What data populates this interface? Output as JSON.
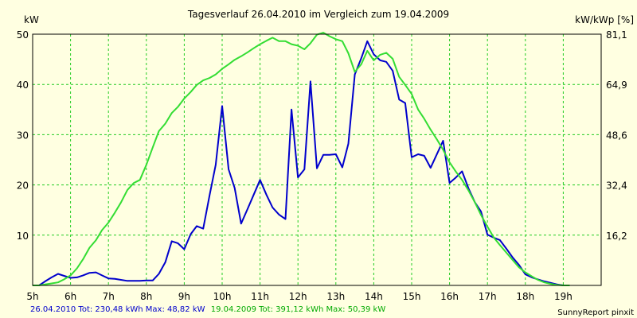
{
  "chart_data": {
    "type": "line",
    "title": "Tagesverlauf 26.04.2010 im Vergleich zum 19.04.2009",
    "ylabel_left": "kW",
    "ylabel_right": "kW/kWp [%]",
    "xlim": [
      5,
      20
    ],
    "ylim": [
      0,
      50
    ],
    "x_ticks": [
      {
        "value": 5,
        "label": "5h"
      },
      {
        "value": 6,
        "label": "6h"
      },
      {
        "value": 7,
        "label": "7h"
      },
      {
        "value": 8,
        "label": "8h"
      },
      {
        "value": 9,
        "label": "9h"
      },
      {
        "value": 10,
        "label": "10h"
      },
      {
        "value": 11,
        "label": "11h"
      },
      {
        "value": 12,
        "label": "12h"
      },
      {
        "value": 13,
        "label": "13h"
      },
      {
        "value": 14,
        "label": "14h"
      },
      {
        "value": 15,
        "label": "15h"
      },
      {
        "value": 16,
        "label": "16h"
      },
      {
        "value": 17,
        "label": "17h"
      },
      {
        "value": 18,
        "label": "18h"
      },
      {
        "value": 19,
        "label": "19h"
      }
    ],
    "y_ticks_left": [
      {
        "value": 10,
        "label": "10"
      },
      {
        "value": 20,
        "label": "20"
      },
      {
        "value": 30,
        "label": "30"
      },
      {
        "value": 40,
        "label": "40"
      },
      {
        "value": 50,
        "label": "50"
      }
    ],
    "y_ticks_right": [
      {
        "value": 10,
        "label": "16,2"
      },
      {
        "value": 20,
        "label": "32,4"
      },
      {
        "value": 30,
        "label": "48,6"
      },
      {
        "value": 40,
        "label": "64,9"
      },
      {
        "value": 50,
        "label": "81,1"
      }
    ],
    "grid": true,
    "series": [
      {
        "color": "#0000cc",
        "points": [
          [
            5.0,
            0
          ],
          [
            5.17,
            0
          ],
          [
            5.33,
            0.8
          ],
          [
            5.5,
            1.6
          ],
          [
            5.67,
            2.3
          ],
          [
            5.83,
            1.9
          ],
          [
            6.0,
            1.5
          ],
          [
            6.17,
            1.6
          ],
          [
            6.33,
            2.0
          ],
          [
            6.5,
            2.5
          ],
          [
            6.67,
            2.6
          ],
          [
            6.83,
            2.0
          ],
          [
            7.0,
            1.4
          ],
          [
            7.17,
            1.3
          ],
          [
            7.33,
            1.1
          ],
          [
            7.5,
            0.9
          ],
          [
            7.67,
            0.9
          ],
          [
            7.83,
            0.9
          ],
          [
            8.0,
            1.0
          ],
          [
            8.17,
            1.0
          ],
          [
            8.33,
            2.3
          ],
          [
            8.5,
            4.6
          ],
          [
            8.67,
            8.8
          ],
          [
            8.83,
            8.4
          ],
          [
            9.0,
            7.2
          ],
          [
            9.17,
            10.2
          ],
          [
            9.33,
            11.8
          ],
          [
            9.5,
            11.3
          ],
          [
            9.67,
            18.0
          ],
          [
            9.83,
            24.0
          ],
          [
            10.0,
            35.7
          ],
          [
            10.17,
            23.1
          ],
          [
            10.33,
            19.4
          ],
          [
            10.5,
            12.3
          ],
          [
            10.67,
            15.2
          ],
          [
            10.83,
            18.0
          ],
          [
            11.0,
            21.0
          ],
          [
            11.17,
            18.0
          ],
          [
            11.33,
            15.5
          ],
          [
            11.5,
            14.1
          ],
          [
            11.67,
            13.2
          ],
          [
            11.83,
            35.0
          ],
          [
            12.0,
            21.5
          ],
          [
            12.17,
            23.1
          ],
          [
            12.33,
            40.6
          ],
          [
            12.5,
            23.3
          ],
          [
            12.67,
            26.0
          ],
          [
            12.83,
            26.0
          ],
          [
            13.0,
            26.1
          ],
          [
            13.17,
            23.5
          ],
          [
            13.33,
            28.2
          ],
          [
            13.5,
            42.0
          ],
          [
            13.67,
            45.2
          ],
          [
            13.83,
            48.6
          ],
          [
            14.0,
            46.0
          ],
          [
            14.17,
            44.8
          ],
          [
            14.33,
            44.5
          ],
          [
            14.5,
            42.7
          ],
          [
            14.67,
            37.0
          ],
          [
            14.83,
            36.3
          ],
          [
            15.0,
            25.5
          ],
          [
            15.17,
            26.1
          ],
          [
            15.33,
            25.8
          ],
          [
            15.5,
            23.4
          ],
          [
            15.67,
            26.2
          ],
          [
            15.83,
            28.8
          ],
          [
            16.0,
            20.4
          ],
          [
            16.17,
            21.5
          ],
          [
            16.33,
            22.7
          ],
          [
            16.5,
            19.3
          ],
          [
            16.67,
            16.5
          ],
          [
            16.83,
            14.7
          ],
          [
            17.0,
            10.1
          ],
          [
            17.17,
            9.5
          ],
          [
            17.33,
            9.0
          ],
          [
            17.5,
            7.3
          ],
          [
            17.67,
            5.5
          ],
          [
            17.83,
            4.1
          ],
          [
            18.0,
            2.2
          ],
          [
            18.17,
            1.6
          ],
          [
            18.33,
            1.2
          ],
          [
            18.5,
            0.8
          ],
          [
            18.67,
            0.5
          ],
          [
            18.83,
            0.2
          ],
          [
            19.0,
            0
          ],
          [
            19.17,
            0
          ]
        ]
      },
      {
        "color": "#33dd33",
        "points": [
          [
            5.0,
            0
          ],
          [
            5.17,
            0
          ],
          [
            5.33,
            0.2
          ],
          [
            5.5,
            0.4
          ],
          [
            5.67,
            0.6
          ],
          [
            5.83,
            1.2
          ],
          [
            6.0,
            2.0
          ],
          [
            6.17,
            3.4
          ],
          [
            6.33,
            5.2
          ],
          [
            6.5,
            7.5
          ],
          [
            6.67,
            9.0
          ],
          [
            6.83,
            11.0
          ],
          [
            7.0,
            12.5
          ],
          [
            7.17,
            14.5
          ],
          [
            7.33,
            16.5
          ],
          [
            7.5,
            19.0
          ],
          [
            7.67,
            20.4
          ],
          [
            7.83,
            21.0
          ],
          [
            8.0,
            24.0
          ],
          [
            8.17,
            27.5
          ],
          [
            8.33,
            30.7
          ],
          [
            8.5,
            32.2
          ],
          [
            8.67,
            34.3
          ],
          [
            8.83,
            35.5
          ],
          [
            9.0,
            37.2
          ],
          [
            9.17,
            38.5
          ],
          [
            9.33,
            39.9
          ],
          [
            9.5,
            40.8
          ],
          [
            9.67,
            41.3
          ],
          [
            9.83,
            42.0
          ],
          [
            10.0,
            43.1
          ],
          [
            10.17,
            44.0
          ],
          [
            10.33,
            44.9
          ],
          [
            10.5,
            45.6
          ],
          [
            10.67,
            46.4
          ],
          [
            10.83,
            47.2
          ],
          [
            11.0,
            48.0
          ],
          [
            11.17,
            48.7
          ],
          [
            11.33,
            49.3
          ],
          [
            11.5,
            48.6
          ],
          [
            11.67,
            48.6
          ],
          [
            11.83,
            48.0
          ],
          [
            12.0,
            47.7
          ],
          [
            12.17,
            47.0
          ],
          [
            12.33,
            48.2
          ],
          [
            12.5,
            49.9
          ],
          [
            12.67,
            50.3
          ],
          [
            12.83,
            49.6
          ],
          [
            13.0,
            49.0
          ],
          [
            13.17,
            48.6
          ],
          [
            13.33,
            46.2
          ],
          [
            13.5,
            42.5
          ],
          [
            13.67,
            44.0
          ],
          [
            13.83,
            46.7
          ],
          [
            14.0,
            44.8
          ],
          [
            14.17,
            45.9
          ],
          [
            14.33,
            46.3
          ],
          [
            14.5,
            45.1
          ],
          [
            14.67,
            41.5
          ],
          [
            14.83,
            39.9
          ],
          [
            15.0,
            38.1
          ],
          [
            15.17,
            35.0
          ],
          [
            15.33,
            33.2
          ],
          [
            15.5,
            31.0
          ],
          [
            15.67,
            29.0
          ],
          [
            15.83,
            27.0
          ],
          [
            16.0,
            24.5
          ],
          [
            16.17,
            22.6
          ],
          [
            16.33,
            21.0
          ],
          [
            16.5,
            18.9
          ],
          [
            16.67,
            16.5
          ],
          [
            16.83,
            14.0
          ],
          [
            17.0,
            11.7
          ],
          [
            17.17,
            9.5
          ],
          [
            17.33,
            8.0
          ],
          [
            17.5,
            6.5
          ],
          [
            17.67,
            5.0
          ],
          [
            17.83,
            3.6
          ],
          [
            18.0,
            2.6
          ],
          [
            18.17,
            1.8
          ],
          [
            18.33,
            1.1
          ],
          [
            18.5,
            0.6
          ],
          [
            18.67,
            0.3
          ],
          [
            18.83,
            0.1
          ],
          [
            19.0,
            0
          ],
          [
            19.17,
            0
          ]
        ]
      }
    ]
  },
  "footer": {
    "legend_blue": "26.04.2010 Tot: 230,48 kWh Max: 48,82 kW",
    "legend_green": "19.04.2009 Tot: 391,12 kWh Max: 50,39 kW",
    "credit": "SunnyReport pinxit"
  },
  "colors": {
    "background": "#ffffe1",
    "grid": "#22cc22",
    "blue": "#0000cc",
    "green": "#33dd33"
  }
}
